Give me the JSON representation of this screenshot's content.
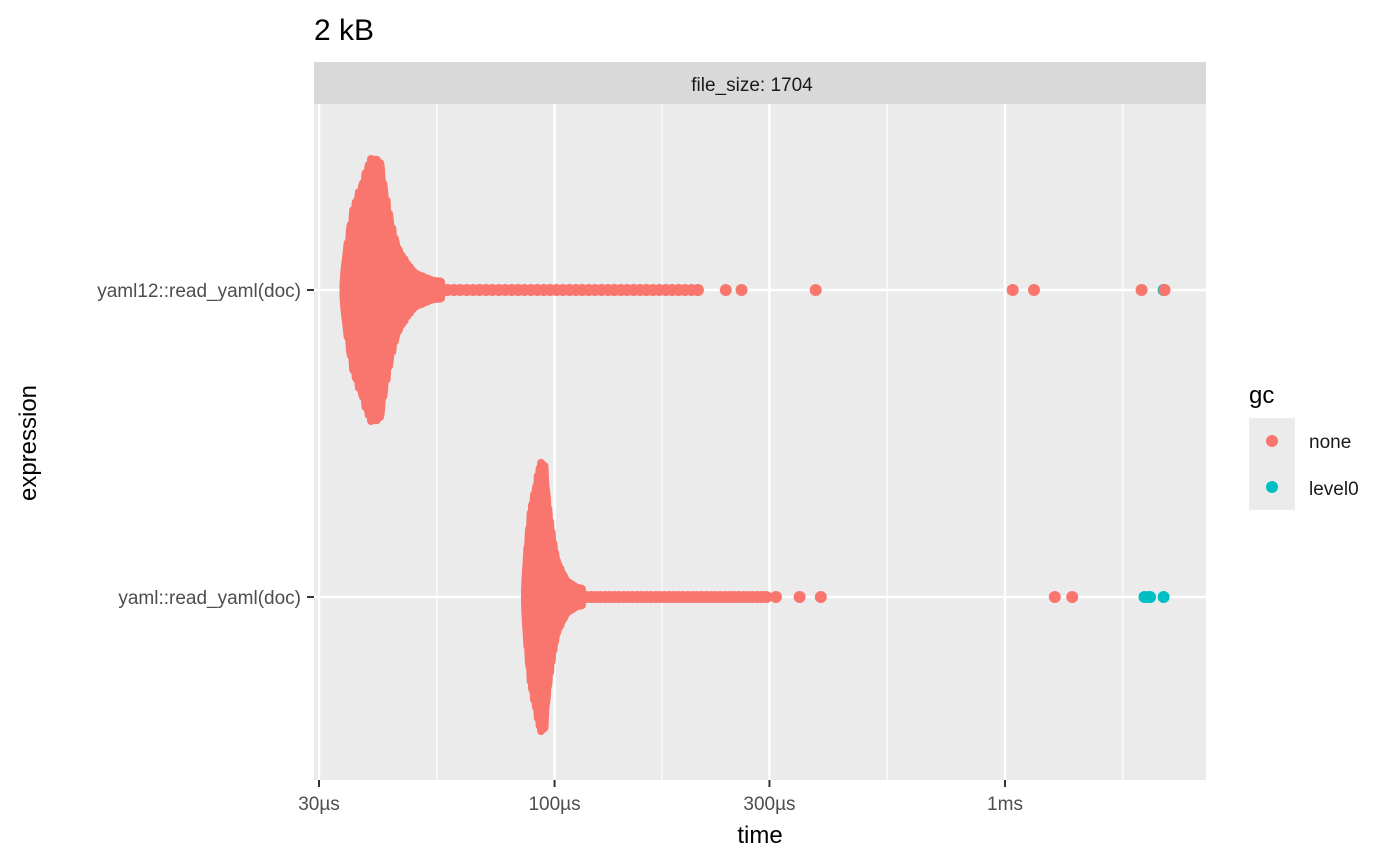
{
  "chart_data": {
    "type": "scatter",
    "title": "2 kB",
    "facet_label": "file_size: 1704",
    "xlabel": "time",
    "ylabel": "expression",
    "x_scale": "log10",
    "xlim_seconds": [
      2.95e-05,
      0.0026
    ],
    "x_ticks": [
      {
        "value": 3e-05,
        "label": "30µs"
      },
      {
        "value": 0.0001,
        "label": "100µs"
      },
      {
        "value": 0.0003,
        "label": "300µs"
      },
      {
        "value": 0.001,
        "label": "1ms"
      }
    ],
    "categories": [
      "yaml12::read_yaml(doc)",
      "yaml::read_yaml(doc)"
    ],
    "legend": {
      "title": "gc",
      "position": "right",
      "entries": [
        {
          "label": "none",
          "color": "#F8766D"
        },
        {
          "label": "level0",
          "color": "#00BFC4"
        }
      ]
    },
    "grid": true,
    "series": [
      {
        "category": "yaml12::read_yaml(doc)",
        "gc": "none",
        "distribution": {
          "min": 3.4e-05,
          "mode": 4.1e-05,
          "max_dense": 5.6e-05
        },
        "tail_points": [
          0.000208,
          0.00024,
          0.00026,
          0.00038,
          0.00104,
          0.00116,
          0.00201,
          0.00226
        ]
      },
      {
        "category": "yaml12::read_yaml(doc)",
        "gc": "level0",
        "points": [
          0.00225
        ]
      },
      {
        "category": "yaml::read_yaml(doc)",
        "gc": "none",
        "distribution": {
          "min": 8.6e-05,
          "mode": 9.5e-05,
          "max_dense": 0.000115
        },
        "tail_points": [
          0.000295,
          0.00031,
          0.00035,
          0.00039,
          0.00129,
          0.00141
        ]
      },
      {
        "category": "yaml::read_yaml(doc)",
        "gc": "level0",
        "points": [
          0.00204,
          0.00208,
          0.0021,
          0.00225
        ]
      }
    ]
  }
}
